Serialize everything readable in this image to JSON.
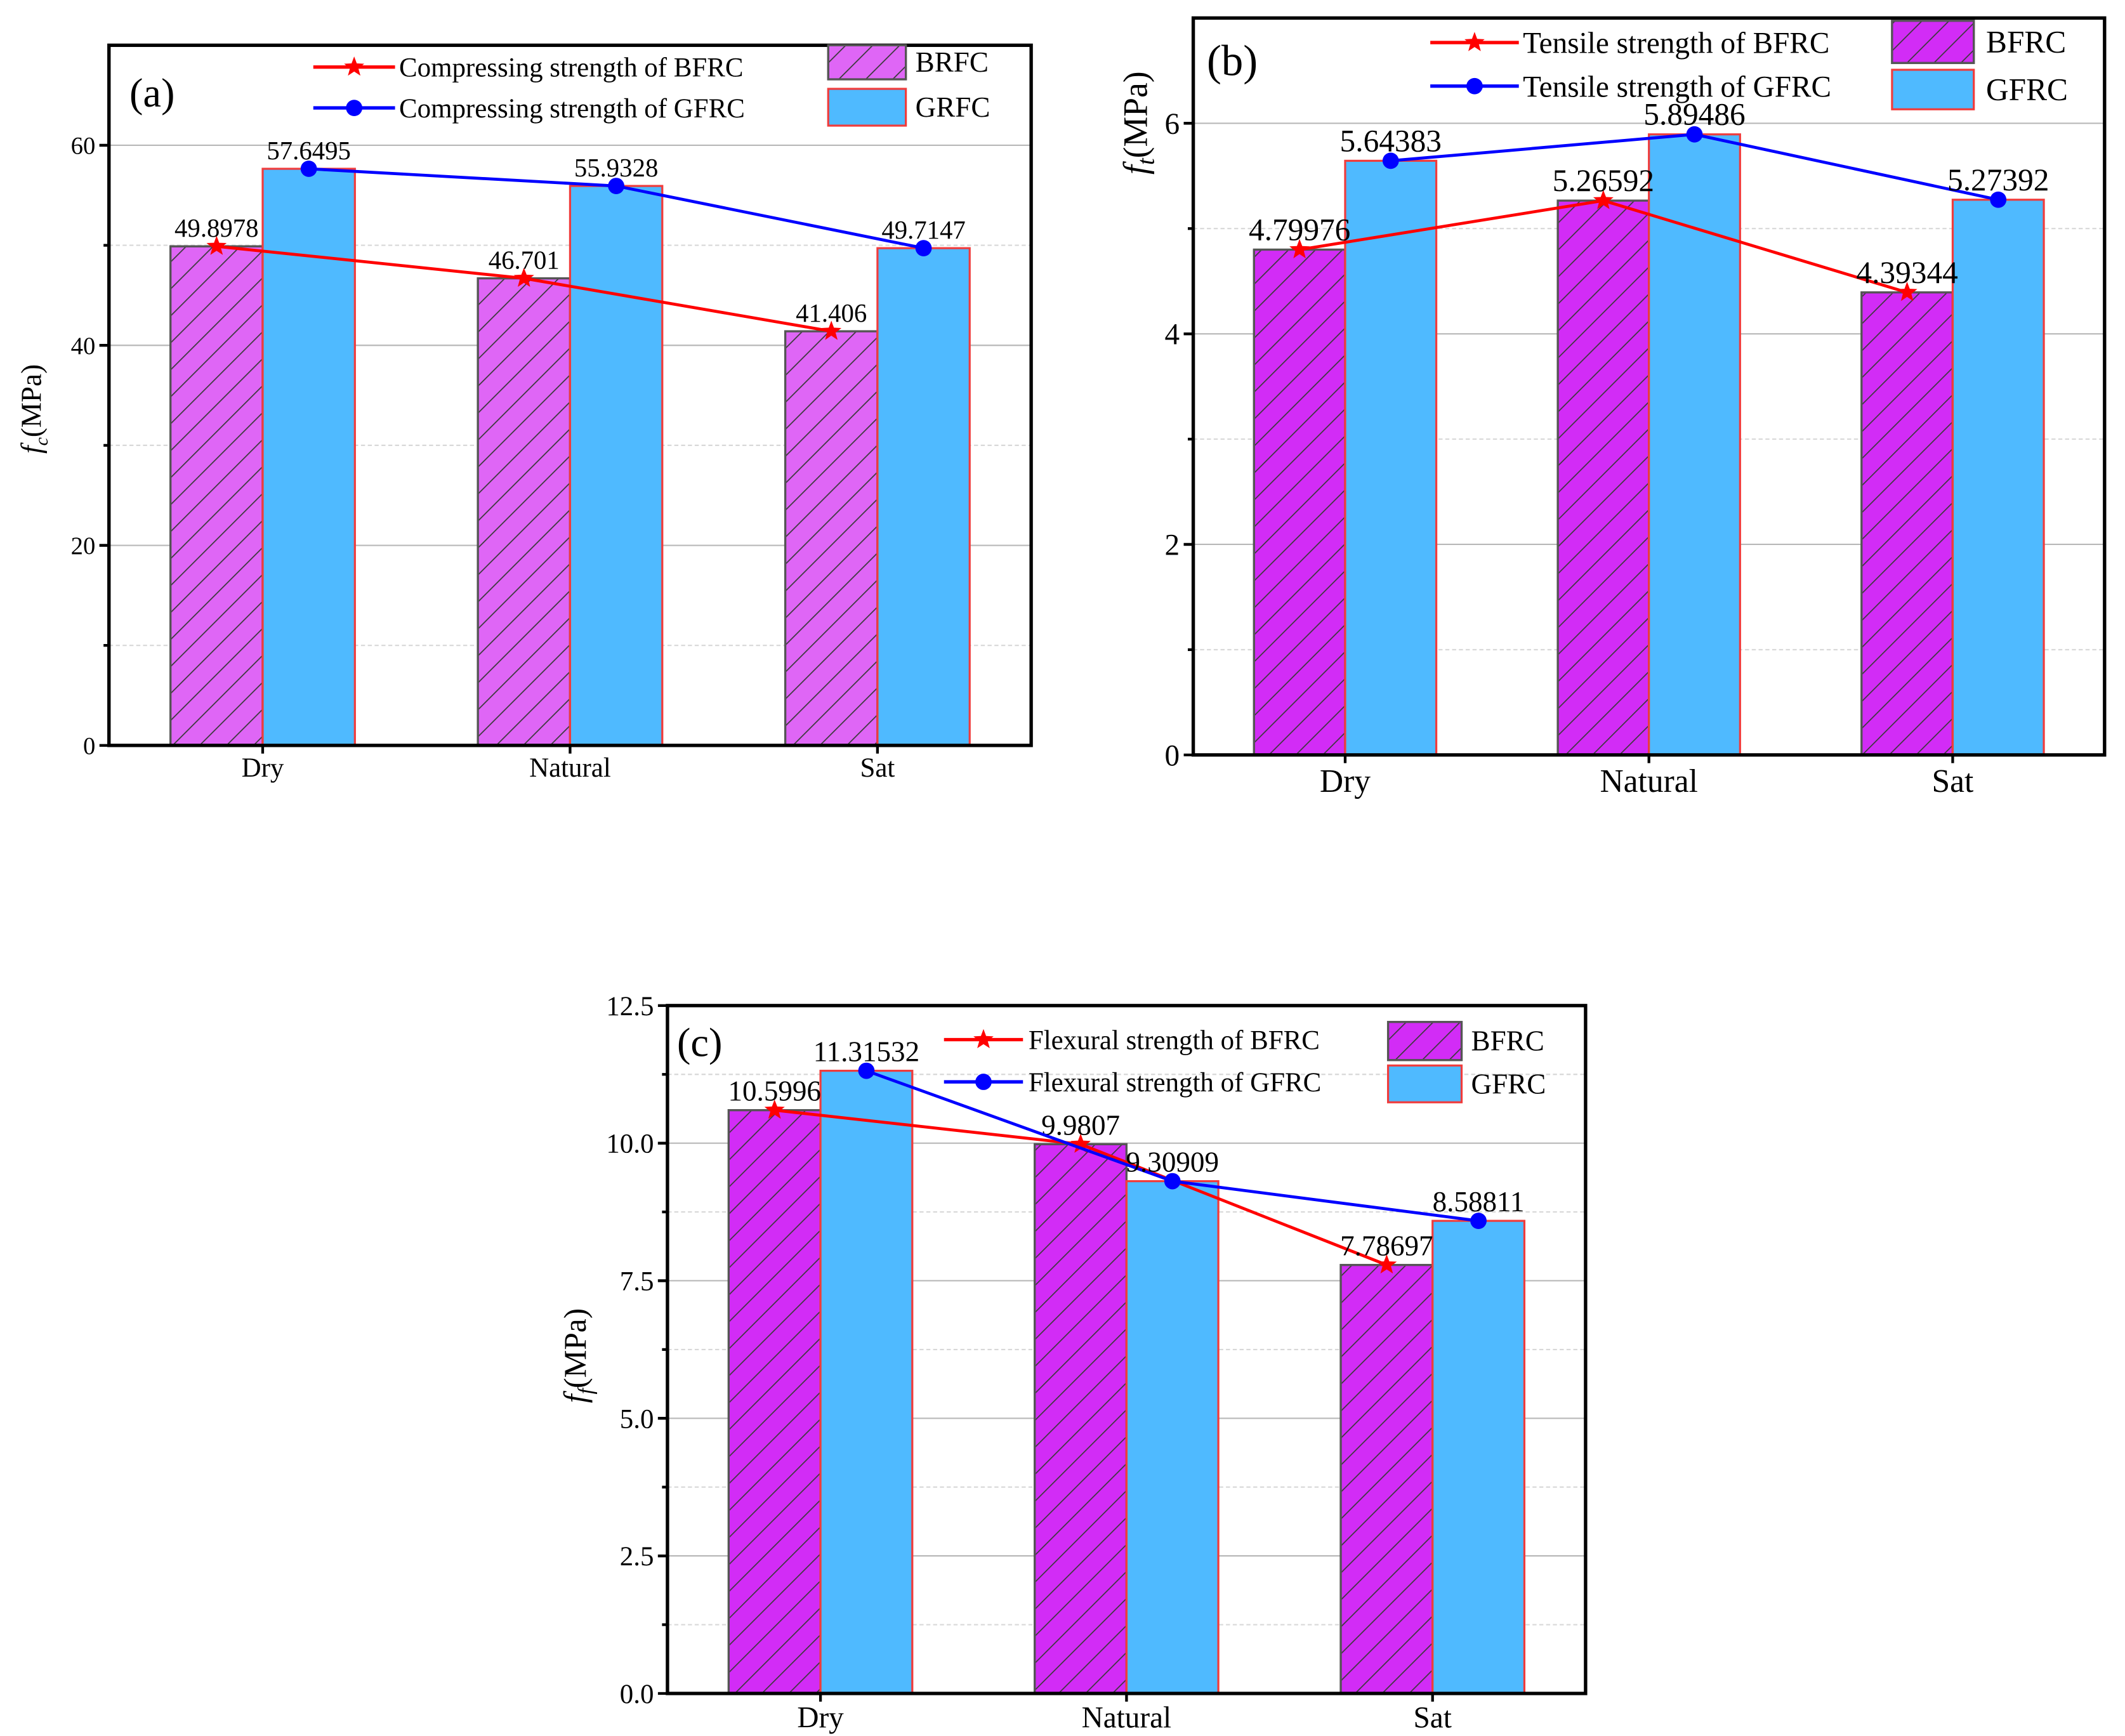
{
  "chart_data": [
    {
      "type": "bar",
      "panel_label": "(a)",
      "ylabel_main": "f",
      "ylabel_sub": "c",
      "ylabel_unit": "(MPa)",
      "categories": [
        "Dry",
        "Natural",
        "Sat"
      ],
      "ylim": [
        0,
        70
      ],
      "yticks": [
        0,
        20,
        40,
        60
      ],
      "yticklabels": [
        "0",
        "20",
        "40",
        "60"
      ],
      "minor_step": 10,
      "grid": true,
      "legend_position": "top-right",
      "bar_series": [
        {
          "name": "BRFC",
          "values": [
            49.8978,
            46.701,
            41.406
          ],
          "fill": "#df66f6",
          "hatch": true
        },
        {
          "name": "GRFC",
          "values": [
            57.6495,
            55.9328,
            49.7147
          ],
          "fill": "#4fbaff",
          "hatch": false
        }
      ],
      "line_series": [
        {
          "name": "Compressing strength of BFRC",
          "values": [
            49.8978,
            46.701,
            41.406
          ],
          "labels": [
            "49.8978",
            "46.701",
            "41.406"
          ],
          "color": "#ff0000",
          "marker": "star"
        },
        {
          "name": "Compressing strength of GFRC",
          "values": [
            57.6495,
            55.9328,
            49.7147
          ],
          "labels": [
            "57.6495",
            "55.9328",
            "49.7147"
          ],
          "color": "#0000ff",
          "marker": "circle"
        }
      ]
    },
    {
      "type": "bar",
      "panel_label": "(b)",
      "ylabel_main": "f",
      "ylabel_sub": "t",
      "ylabel_unit": "(MPa)",
      "categories": [
        "Dry",
        "Natural",
        "Sat"
      ],
      "ylim": [
        0,
        7
      ],
      "yticks": [
        0,
        2,
        4,
        6
      ],
      "yticklabels": [
        "0",
        "2",
        "4",
        "6"
      ],
      "minor_step": 1,
      "grid": true,
      "legend_position": "top-right",
      "bar_series": [
        {
          "name": "BFRC",
          "values": [
            4.79976,
            5.26592,
            4.39344
          ],
          "fill": "#d22cf6",
          "hatch": true
        },
        {
          "name": "GFRC",
          "values": [
            5.64383,
            5.89486,
            5.27392
          ],
          "fill": "#4fbaff",
          "hatch": false
        }
      ],
      "line_series": [
        {
          "name": "Tensile strength of BFRC",
          "values": [
            4.79976,
            5.26592,
            4.39344
          ],
          "labels": [
            "4.79976",
            "5.26592",
            "4.39344"
          ],
          "color": "#ff0000",
          "marker": "star"
        },
        {
          "name": "Tensile strength of GFRC",
          "values": [
            5.64383,
            5.89486,
            5.27392
          ],
          "labels": [
            "5.64383",
            "5.89486",
            "5.27392"
          ],
          "color": "#0000ff",
          "marker": "circle"
        }
      ]
    },
    {
      "type": "bar",
      "panel_label": "(c)",
      "ylabel_main": "f",
      "ylabel_sub": "f",
      "ylabel_unit": "(MPa)",
      "categories": [
        "Dry",
        "Natural",
        "Sat"
      ],
      "ylim": [
        0,
        12.5
      ],
      "yticks": [
        0,
        2.5,
        5,
        7.5,
        10,
        12.5
      ],
      "yticklabels": [
        "0.0",
        "2.5",
        "5.0",
        "7.5",
        "10.0",
        "12.5"
      ],
      "minor_step": 1.25,
      "grid": true,
      "legend_position": "top-right",
      "bar_series": [
        {
          "name": "BFRC",
          "values": [
            10.5996,
            9.9807,
            7.78697
          ],
          "fill": "#d22cf6",
          "hatch": true
        },
        {
          "name": "GFRC",
          "values": [
            11.31532,
            9.30909,
            8.58811
          ],
          "fill": "#4fbaff",
          "hatch": false
        }
      ],
      "line_series": [
        {
          "name": "Flexural strength of BFRC",
          "values": [
            10.5996,
            9.9807,
            7.78697
          ],
          "labels": [
            "10.5996",
            "9.9807",
            "7.78697"
          ],
          "color": "#ff0000",
          "marker": "star"
        },
        {
          "name": "Flexural strength of GFRC",
          "values": [
            11.31532,
            9.30909,
            8.58811
          ],
          "labels": [
            "11.31532",
            "9.30909",
            "8.58811"
          ],
          "color": "#0000ff",
          "marker": "circle"
        }
      ]
    }
  ]
}
